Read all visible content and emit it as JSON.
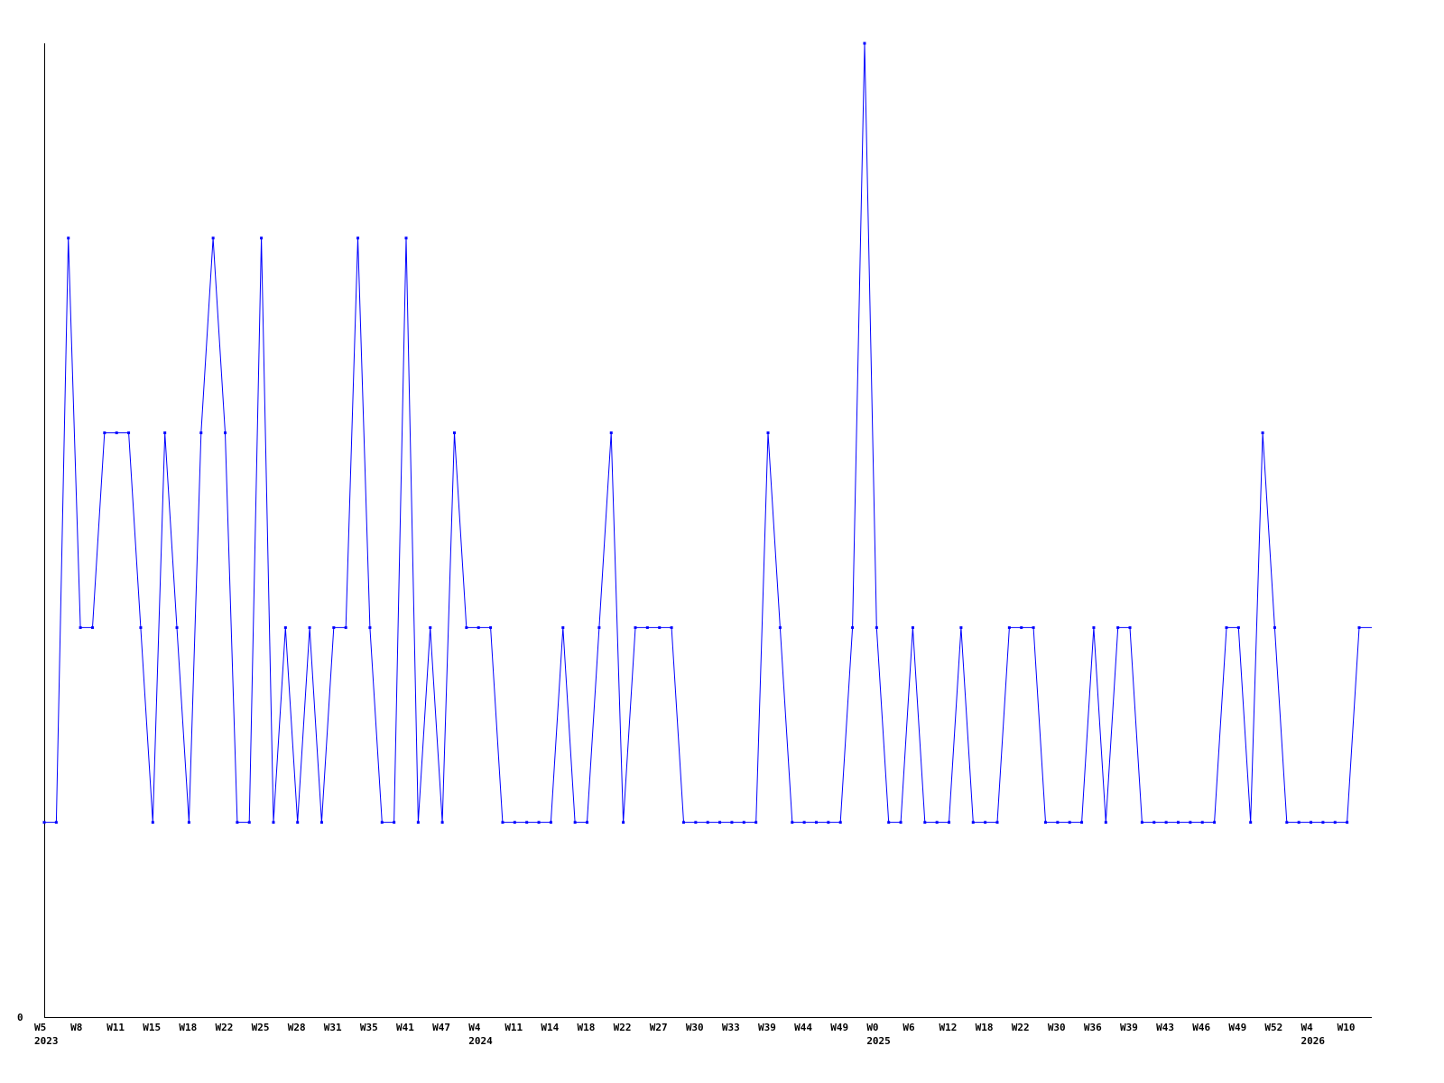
{
  "chart_data": {
    "type": "line",
    "title": "",
    "xlabel": "",
    "ylabel": "",
    "y_tick_labels": [
      "0"
    ],
    "ylim": [
      0,
      5
    ],
    "grid": false,
    "line_color": "#0000ff",
    "axis_color": "#000000",
    "x_tick_labels": [
      "W5",
      "W8",
      "W11",
      "W15",
      "W18",
      "W22",
      "W25",
      "W28",
      "W31",
      "W35",
      "W41",
      "W47",
      "W4",
      "W11",
      "W14",
      "W18",
      "W22",
      "W27",
      "W30",
      "W33",
      "W39",
      "W44",
      "W49",
      "W0",
      "W6",
      "W12",
      "W18",
      "W22",
      "W30",
      "W36",
      "W39",
      "W43",
      "W46",
      "W49",
      "W52",
      "W4",
      "W10"
    ],
    "year_labels": [
      {
        "label": "2023",
        "tick_index": 0
      },
      {
        "label": "2024",
        "tick_index": 12
      },
      {
        "label": "2025",
        "tick_index": 23
      },
      {
        "label": "2026",
        "tick_index": 35
      }
    ],
    "values": [
      1,
      1,
      4,
      2,
      2,
      3,
      3,
      3,
      2,
      1,
      3,
      2,
      1,
      3,
      4,
      3,
      1,
      1,
      4,
      1,
      2,
      1,
      2,
      1,
      2,
      2,
      4,
      2,
      1,
      1,
      4,
      1,
      2,
      1,
      3,
      2,
      2,
      2,
      1,
      1,
      1,
      1,
      1,
      2,
      1,
      1,
      2,
      3,
      1,
      2,
      2,
      2,
      2,
      1,
      1,
      1,
      1,
      1,
      1,
      1,
      3,
      2,
      1,
      1,
      1,
      1,
      1,
      2,
      5,
      2,
      1,
      1,
      2,
      1,
      1,
      1,
      2,
      1,
      1,
      1,
      2,
      2,
      2,
      1,
      1,
      1,
      1,
      2,
      1,
      2,
      2,
      1,
      1,
      1,
      1,
      1,
      1,
      1,
      2,
      2,
      1,
      3,
      2,
      1,
      1,
      1,
      1,
      1,
      1,
      2
    ]
  }
}
